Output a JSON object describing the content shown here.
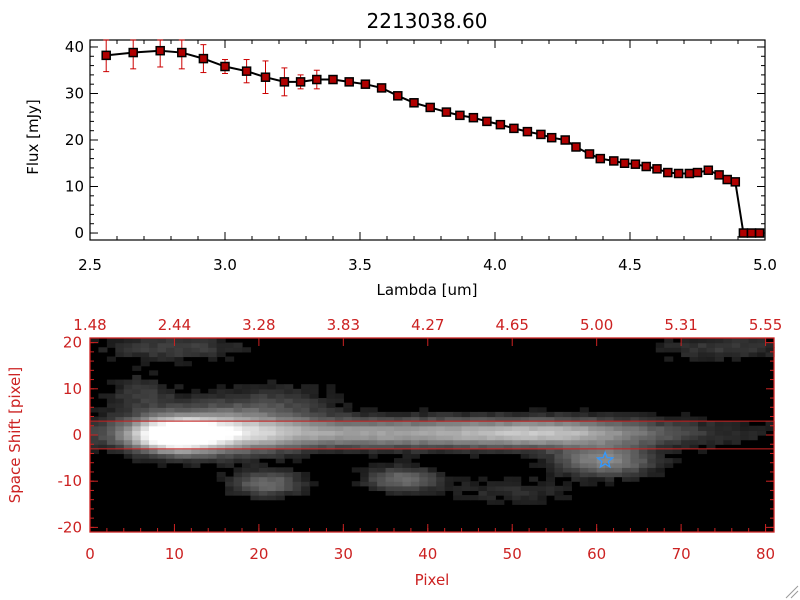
{
  "chart_data": [
    {
      "type": "line",
      "title": "2213038.60",
      "xlabel": "Lambda [um]",
      "ylabel": "Flux [mJy]",
      "xlim": [
        2.5,
        5.0
      ],
      "ylim": [
        -1.5,
        41.5
      ],
      "x_ticks": [
        "2.5",
        "3.0",
        "3.5",
        "4.0",
        "4.5",
        "5.0"
      ],
      "y_ticks": [
        "0",
        "10",
        "20",
        "30",
        "40"
      ],
      "colors": {
        "line": "#000000",
        "marker_fill": "#b00000",
        "error_bar": "#cc0000"
      },
      "series": [
        {
          "x": [
            2.56,
            2.66,
            2.76,
            2.84,
            2.92,
            3.0,
            3.08,
            3.15,
            3.22,
            3.28,
            3.34,
            3.4,
            3.46,
            3.52,
            3.58,
            3.64,
            3.7,
            3.76,
            3.82,
            3.87,
            3.92,
            3.97,
            4.02,
            4.07,
            4.12,
            4.17,
            4.21,
            4.26,
            4.3,
            4.35,
            4.39,
            4.44,
            4.48,
            4.52,
            4.56,
            4.6,
            4.64,
            4.68,
            4.72,
            4.75,
            4.79,
            4.83,
            4.86,
            4.89,
            4.92,
            4.95,
            4.98
          ],
          "y": [
            38.2,
            38.8,
            39.2,
            38.8,
            37.5,
            35.8,
            34.8,
            33.5,
            32.5,
            32.5,
            33.0,
            33.0,
            32.5,
            32.0,
            31.2,
            29.5,
            28.0,
            27.0,
            26.0,
            25.3,
            24.8,
            24.0,
            23.3,
            22.5,
            21.8,
            21.2,
            20.5,
            20.0,
            18.5,
            17.0,
            16.0,
            15.5,
            15.0,
            14.8,
            14.3,
            13.8,
            13.0,
            12.8,
            12.8,
            13.0,
            13.5,
            12.5,
            11.5,
            11.0,
            0.0,
            0.0,
            0.0
          ],
          "yerr": [
            3.5,
            3.5,
            3.5,
            3.5,
            3.0,
            1.5,
            2.5,
            3.5,
            3.0,
            1.5,
            2.0,
            0.8,
            0.5,
            0.5,
            0.5,
            0.5,
            0.5,
            0.5,
            0.5,
            0.5,
            0.5,
            0.5,
            0.5,
            0.5,
            0.5,
            0.5,
            0.5,
            0.5,
            0.5,
            0.5,
            0.5,
            0.5,
            0.5,
            0.5,
            0.5,
            0.5,
            0.5,
            0.5,
            0.5,
            0.5,
            0.5,
            0.5,
            0.5,
            0.5,
            0.5,
            0.5,
            0.5
          ]
        }
      ]
    },
    {
      "type": "heatmap",
      "xlabel": "Pixel",
      "ylabel": "Space Shift [pixel]",
      "xlim": [
        0,
        81
      ],
      "ylim": [
        -21,
        21
      ],
      "x_ticks": [
        "0",
        "10",
        "20",
        "30",
        "40",
        "50",
        "60",
        "70",
        "80"
      ],
      "y_ticks": [
        "-20",
        "-10",
        "0",
        "10",
        "20"
      ],
      "top_axis_ticks": [
        "1.48",
        "2.44",
        "3.28",
        "3.83",
        "4.27",
        "4.65",
        "5.00",
        "5.31",
        "5.55"
      ],
      "aperture_rows": [
        3,
        -3
      ],
      "colors": {
        "axis": "#cc2222",
        "background": "#000000",
        "star": "#3399ff"
      },
      "blobs": [
        {
          "x": 10,
          "y": 0,
          "sx": 3.2,
          "sy": 2.3,
          "amp": 1.0
        },
        {
          "x": 15,
          "y": 1,
          "sx": 6,
          "sy": 3.5,
          "amp": 0.55
        },
        {
          "x": 35,
          "y": 0.5,
          "sx": 22,
          "sy": 2.2,
          "amp": 0.55
        },
        {
          "x": 55,
          "y": 0.5,
          "sx": 8,
          "sy": 2.0,
          "amp": 0.35
        },
        {
          "x": 61,
          "y": -5.5,
          "sx": 4,
          "sy": 2.2,
          "amp": 0.45
        },
        {
          "x": 21,
          "y": -10.5,
          "sx": 3,
          "sy": 1.8,
          "amp": 0.35
        },
        {
          "x": 37,
          "y": -9.5,
          "sx": 3,
          "sy": 1.8,
          "amp": 0.35
        },
        {
          "x": 22,
          "y": 7,
          "sx": 5,
          "sy": 3,
          "amp": 0.15
        },
        {
          "x": 10,
          "y": 19,
          "sx": 6,
          "sy": 2,
          "amp": 0.18
        },
        {
          "x": 50,
          "y": -12,
          "sx": 5,
          "sy": 2,
          "amp": 0.12
        },
        {
          "x": 6,
          "y": 9,
          "sx": 3,
          "sy": 3,
          "amp": 0.15
        },
        {
          "x": 75,
          "y": 19,
          "sx": 6,
          "sy": 2,
          "amp": 0.15
        }
      ],
      "star": {
        "x": 61,
        "y": -5.5
      }
    }
  ]
}
